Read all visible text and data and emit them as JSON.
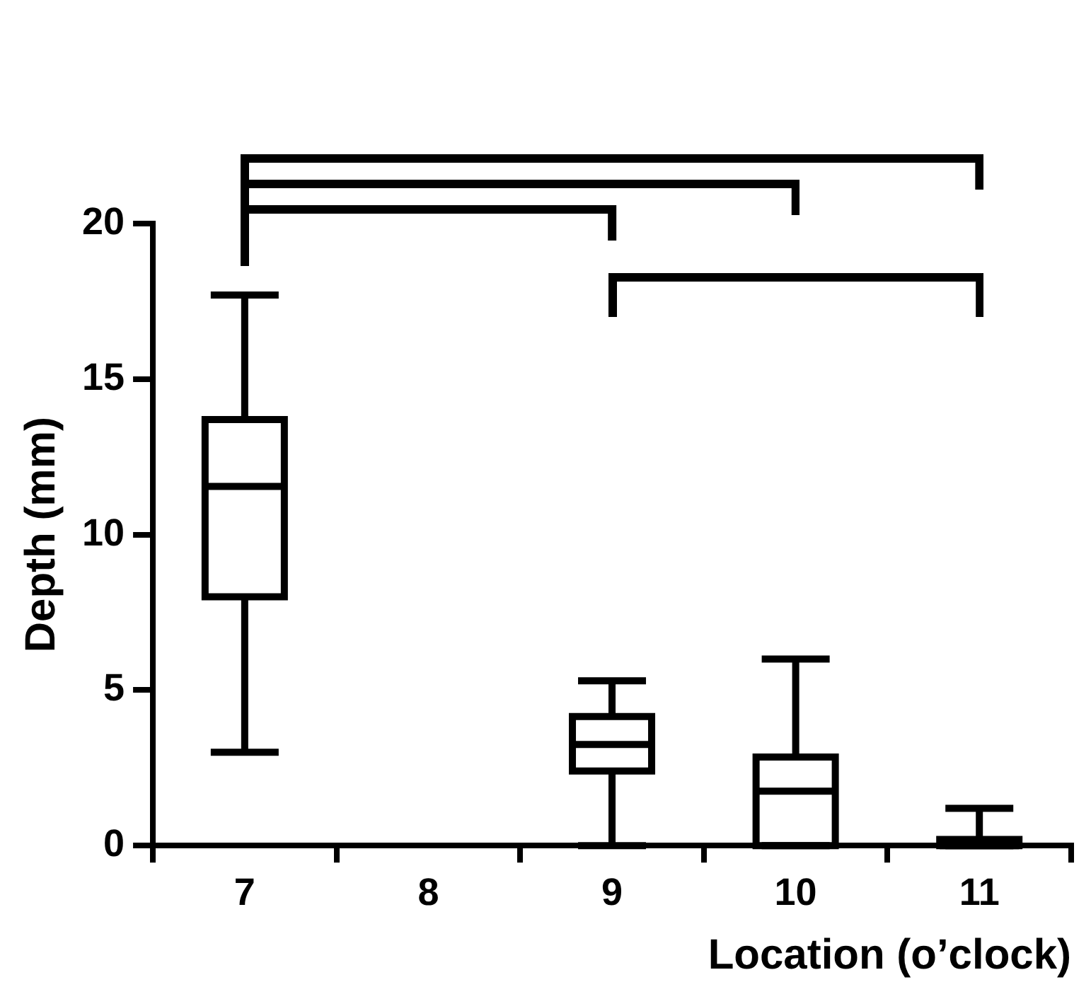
{
  "chart_data": {
    "type": "box",
    "xlabel": "Location (o’clock)",
    "ylabel": "Depth (mm)",
    "categories": [
      "7",
      "8",
      "9",
      "10",
      "11"
    ],
    "ylim": [
      0,
      20
    ],
    "yticks": [
      0,
      5,
      10,
      15,
      20
    ],
    "series": [
      {
        "color": "#000000",
        "boxes": [
          {
            "low": 3.0,
            "q1": 8.0,
            "median": 11.55,
            "q3": 13.7,
            "high": 17.7
          },
          null,
          {
            "low": 0,
            "q1": 2.4,
            "median": 3.25,
            "q3": 4.15,
            "high": 5.3
          },
          {
            "low": 0,
            "q1": 0,
            "median": 1.75,
            "q3": 2.85,
            "high": 6.0
          },
          {
            "low": 0,
            "q1": 0,
            "median": 0,
            "q3": 0.2,
            "high": 1.2
          }
        ]
      }
    ]
  }
}
